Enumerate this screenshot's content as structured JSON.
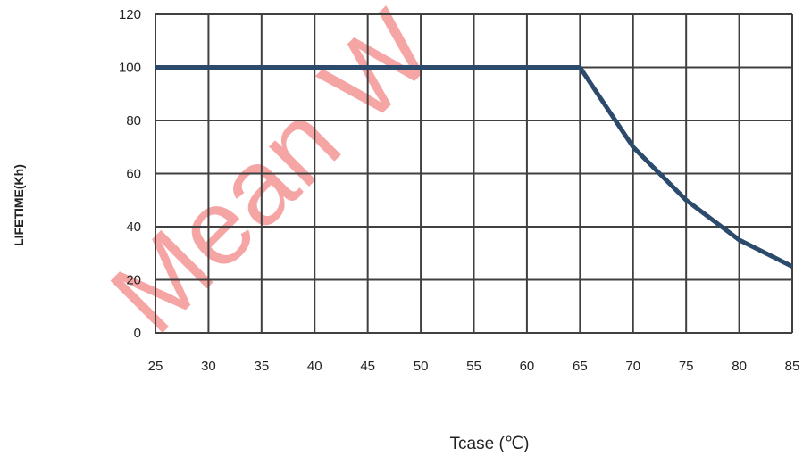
{
  "chart_data": {
    "type": "line",
    "title": "",
    "xlabel": "Tcase (℃)",
    "ylabel": "LIFETIME(Kh)",
    "x": [
      25,
      65,
      70,
      75,
      80,
      85
    ],
    "series": [
      {
        "values": [
          100,
          100,
          70,
          50,
          35,
          25
        ]
      }
    ],
    "xlim": [
      25,
      85
    ],
    "ylim": [
      0,
      120
    ],
    "xticks": [
      "25",
      "30",
      "35",
      "40",
      "45",
      "50",
      "55",
      "60",
      "65",
      "70",
      "75",
      "80",
      "85"
    ],
    "yticks": [
      "0",
      "20",
      "40",
      "60",
      "80",
      "100",
      "120"
    ],
    "grid": true,
    "colors": {
      "line": "#2c4a6b",
      "grid": "#404040",
      "watermark": "#e80000"
    }
  },
  "watermark": {
    "text": "Mean W"
  }
}
